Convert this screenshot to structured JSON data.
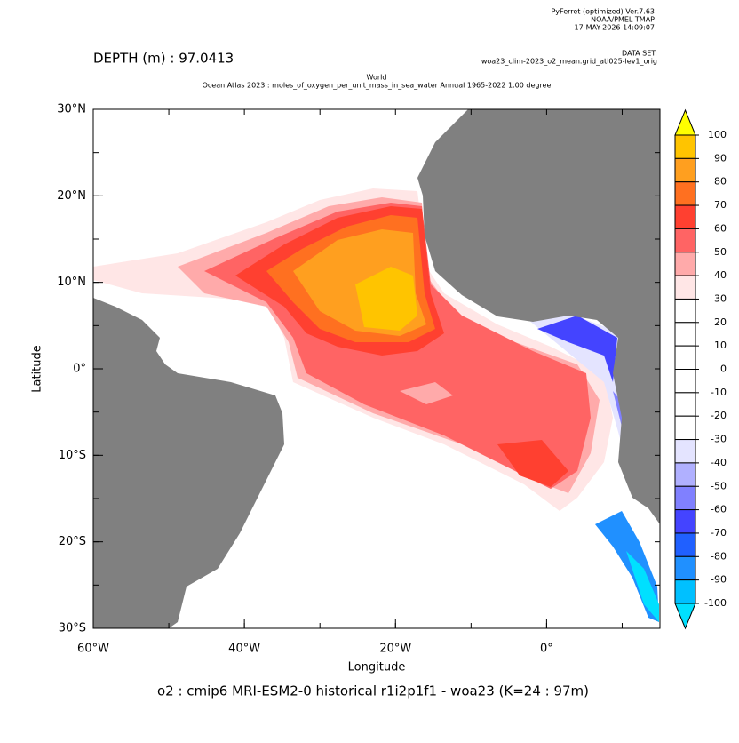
{
  "header": {
    "software": "PyFerret (optimized) Ver.7.63",
    "org": "NOAA/PMEL TMAP",
    "timestamp": "17-MAY-2026 14:09:07",
    "dataset_label": "DATA SET:",
    "dataset": "woa23_clim-2023_o2_mean.grid_atl025-lev1_orig"
  },
  "depth": "DEPTH (m) : 97.0413",
  "title_line1": "World",
  "title_line2": "Ocean Atlas 2023 : moles_of_oxygen_per_unit_mass_in_sea_water Annual 1965-2022 1.00 degree",
  "map": {
    "xlabel": "Longitude",
    "ylabel": "Latitude",
    "xlim": [
      -60,
      15
    ],
    "ylim": [
      -30,
      30
    ],
    "xticks": [
      {
        "value": -60,
        "label": "60°W"
      },
      {
        "value": -40,
        "label": "40°W"
      },
      {
        "value": -20,
        "label": "20°W"
      },
      {
        "value": 0,
        "label": "0°"
      }
    ],
    "yticks": [
      {
        "value": 30,
        "label": "30°N"
      },
      {
        "value": 20,
        "label": "20°N"
      },
      {
        "value": 10,
        "label": "10°N"
      },
      {
        "value": 0,
        "label": "0°"
      },
      {
        "value": -10,
        "label": "10°S"
      },
      {
        "value": -20,
        "label": "20°S"
      },
      {
        "value": -30,
        "label": "30°S"
      }
    ]
  },
  "footer": "o2 : cmip6 MRI-ESM2-0 historical r1i2p1f1 - woa23  (K=24 : 97m)",
  "colorbar": {
    "levels": [
      100,
      90,
      80,
      70,
      60,
      50,
      40,
      30,
      20,
      10,
      0,
      -10,
      -20,
      -30,
      -40,
      -50,
      -60,
      -70,
      -80,
      -90,
      -100
    ],
    "colors": [
      "#ffc400",
      "#ff9f1f",
      "#ff7020",
      "#ff4030",
      "#ff6464",
      "#ffaaaa",
      "#ffe6e6",
      "#ffffff",
      "#ffffff",
      "#ffffff",
      "#ffffff",
      "#ffffff",
      "#ffffff",
      "#e4e4ff",
      "#b0b0ff",
      "#8080ff",
      "#4444ff",
      "#2060ff",
      "#2090ff",
      "#00c0ff"
    ],
    "over_color": "#ffff00",
    "under_color": "#00e0ff"
  }
}
